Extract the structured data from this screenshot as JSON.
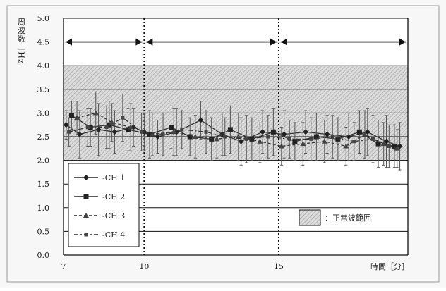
{
  "chart_data": {
    "type": "line",
    "ylabel": "周波数［Hz］",
    "xlabel": "時間［分］",
    "xlim": [
      7,
      19.8
    ],
    "ylim": [
      0,
      5
    ],
    "x_ticks": [
      7,
      10,
      15
    ],
    "x_tick_labels": [
      "7",
      "10",
      "15"
    ],
    "y_ticks": [
      0,
      0.5,
      1,
      1.5,
      2,
      2.5,
      3,
      3.5,
      4,
      4.5,
      5
    ],
    "y_tick_labels": [
      "0.0",
      "0.5",
      "1.0",
      "1.5",
      "2.0",
      "2.5",
      "3.0",
      "3.5",
      "4.0",
      "4.5",
      "5.0"
    ],
    "grid": "horizontal",
    "normal_range": {
      "low": 2,
      "high": 4,
      "label": "：正常波範囲"
    },
    "phase_dividers": [
      10,
      15
    ],
    "phase_arrows": [
      [
        7,
        10
      ],
      [
        10,
        15
      ],
      [
        15,
        19.8
      ]
    ],
    "legend_position": "bottom-left",
    "series": [
      {
        "name": "CH 1",
        "marker": "diamond",
        "dash": "solid",
        "x": [
          7.1,
          7.6,
          8.3,
          8.9,
          9.6,
          10.0,
          10.5,
          11.2,
          12.1,
          12.9,
          13.6,
          14.4,
          15.2,
          16.0,
          16.8,
          17.6,
          18.3,
          19.0,
          19.5
        ],
        "y": [
          2.75,
          2.55,
          2.65,
          2.6,
          2.7,
          2.6,
          2.5,
          2.6,
          2.85,
          2.55,
          2.4,
          2.6,
          2.55,
          2.6,
          2.55,
          2.5,
          2.6,
          2.4,
          2.3
        ],
        "err": [
          0.3,
          0.5,
          0.55,
          0.45,
          0.4,
          0.4,
          0.35,
          0.5,
          0.4,
          0.45,
          0.5,
          0.45,
          0.5,
          0.45,
          0.4,
          0.5,
          0.5,
          0.55,
          0.5
        ]
      },
      {
        "name": "CH 2",
        "marker": "square",
        "dash": "solid",
        "x": [
          7.3,
          8.0,
          8.7,
          9.4,
          10.2,
          11.0,
          11.7,
          12.5,
          13.2,
          14.0,
          14.8,
          15.6,
          16.4,
          17.2,
          18.0,
          18.7,
          19.3
        ],
        "y": [
          2.95,
          2.7,
          2.75,
          2.65,
          2.55,
          2.7,
          2.5,
          2.45,
          2.65,
          2.45,
          2.6,
          2.4,
          2.5,
          2.45,
          2.6,
          2.35,
          2.3
        ],
        "err": [
          0.3,
          0.4,
          0.5,
          0.45,
          0.5,
          0.45,
          0.4,
          0.45,
          0.5,
          0.45,
          0.5,
          0.4,
          0.5,
          0.45,
          0.45,
          0.5,
          0.45
        ]
      },
      {
        "name": "CH 3",
        "marker": "triangle",
        "dash": "dashed",
        "x": [
          7.5,
          8.2,
          8.8,
          9.5,
          10.3,
          11.1,
          11.9,
          12.7,
          13.5,
          14.3,
          15.1,
          15.9,
          16.7,
          17.5,
          18.2,
          18.9,
          19.4
        ],
        "y": [
          2.9,
          3.0,
          2.8,
          2.7,
          2.55,
          2.6,
          2.5,
          2.45,
          2.5,
          2.4,
          2.3,
          2.35,
          2.4,
          2.3,
          2.55,
          2.35,
          2.25
        ],
        "err": [
          0.35,
          0.45,
          0.4,
          0.5,
          0.45,
          0.5,
          0.45,
          0.4,
          0.5,
          0.45,
          0.4,
          0.45,
          0.45,
          0.4,
          0.5,
          0.45,
          0.4
        ]
      },
      {
        "name": "CH 4",
        "marker": "square-small",
        "dash": "dash-dot",
        "x": [
          7.2,
          7.9,
          8.6,
          9.2,
          9.9,
          10.7,
          11.4,
          12.3,
          13.0,
          13.8,
          14.6,
          15.4,
          16.2,
          17.0,
          17.8,
          18.5,
          19.1
        ],
        "y": [
          2.6,
          2.7,
          2.7,
          2.9,
          2.6,
          2.55,
          2.65,
          2.6,
          2.5,
          2.45,
          2.5,
          2.45,
          2.45,
          2.5,
          2.4,
          2.45,
          2.3
        ],
        "err": [
          0.3,
          0.4,
          0.45,
          0.5,
          0.4,
          0.45,
          0.4,
          0.45,
          0.4,
          0.5,
          0.45,
          0.4,
          0.45,
          0.45,
          0.4,
          0.5,
          0.45
        ]
      }
    ]
  }
}
